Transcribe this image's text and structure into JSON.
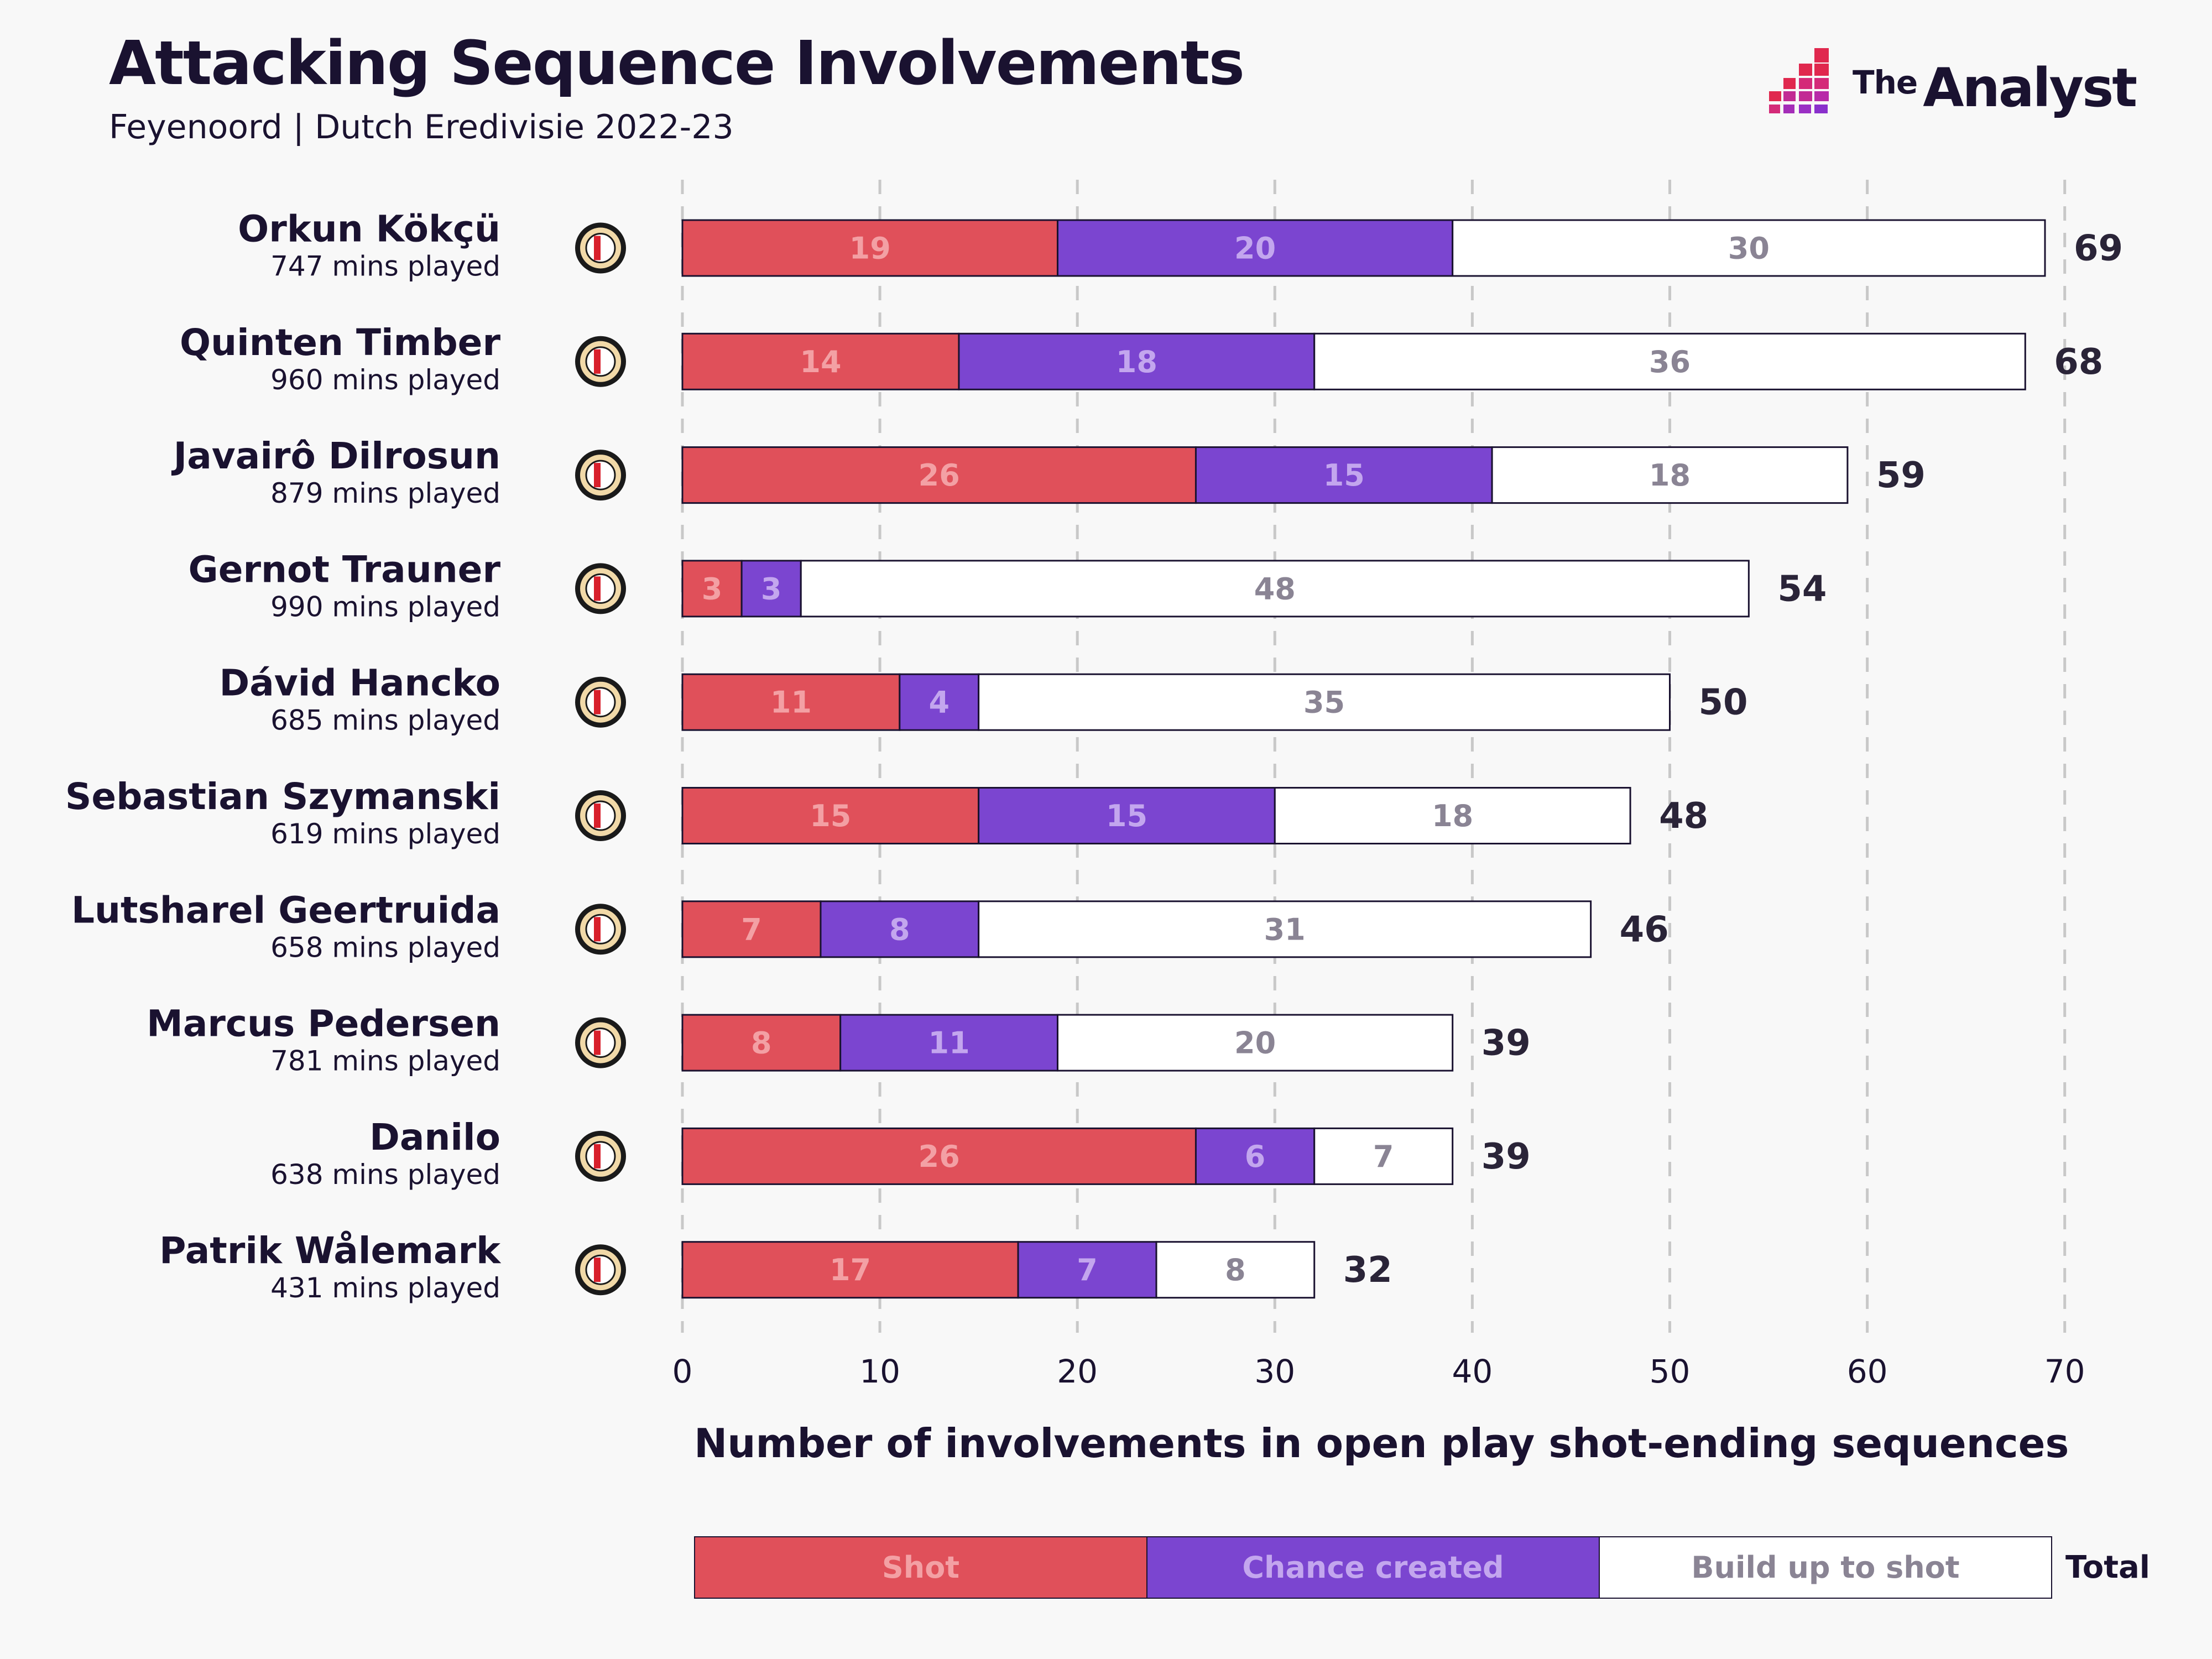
{
  "header": {
    "title": "Attacking Sequence Involvements",
    "subtitle": "Feyenoord | Dutch Eredivisie 2022-23"
  },
  "brand": {
    "the": "The",
    "name": "Analyst"
  },
  "colors": {
    "shot": "#e0505a",
    "chance": "#7b45d0",
    "buildup": "#ffffff",
    "ink": "#1a1230",
    "label_on_shot": "#f3a0a4",
    "label_on_chance": "#c3a6ee",
    "label_on_buildup": "#8a8494"
  },
  "chart_data": {
    "type": "bar",
    "orientation": "horizontal",
    "stacked": true,
    "xlabel": "Number of involvements in open play shot-ending sequences",
    "xlim": [
      0,
      70
    ],
    "xticks": [
      0,
      10,
      20,
      30,
      40,
      50,
      60,
      70
    ],
    "grid": true,
    "series_names": [
      "Shot",
      "Chance created",
      "Build up to shot"
    ],
    "total_label": "Total",
    "players": [
      {
        "name": "Orkun Kökçü",
        "mins": "747 mins played",
        "shot": 19,
        "chance": 20,
        "buildup": 30,
        "total": 69
      },
      {
        "name": "Quinten Timber",
        "mins": "960 mins played",
        "shot": 14,
        "chance": 18,
        "buildup": 36,
        "total": 68
      },
      {
        "name": "Javairô Dilrosun",
        "mins": "879 mins played",
        "shot": 26,
        "chance": 15,
        "buildup": 18,
        "total": 59
      },
      {
        "name": "Gernot Trauner",
        "mins": "990 mins played",
        "shot": 3,
        "chance": 3,
        "buildup": 48,
        "total": 54
      },
      {
        "name": "Dávid Hancko",
        "mins": "685 mins played",
        "shot": 11,
        "chance": 4,
        "buildup": 35,
        "total": 50
      },
      {
        "name": "Sebastian Szymanski",
        "mins": "619 mins played",
        "shot": 15,
        "chance": 15,
        "buildup": 18,
        "total": 48
      },
      {
        "name": "Lutsharel Geertruida",
        "mins": "658 mins played",
        "shot": 7,
        "chance": 8,
        "buildup": 31,
        "total": 46
      },
      {
        "name": "Marcus Pedersen",
        "mins": "781 mins played",
        "shot": 8,
        "chance": 11,
        "buildup": 20,
        "total": 39
      },
      {
        "name": "Danilo",
        "mins": "638 mins played",
        "shot": 26,
        "chance": 6,
        "buildup": 7,
        "total": 39
      },
      {
        "name": "Patrik Wålemark",
        "mins": "431 mins played",
        "shot": 17,
        "chance": 7,
        "buildup": 8,
        "total": 32
      }
    ]
  }
}
